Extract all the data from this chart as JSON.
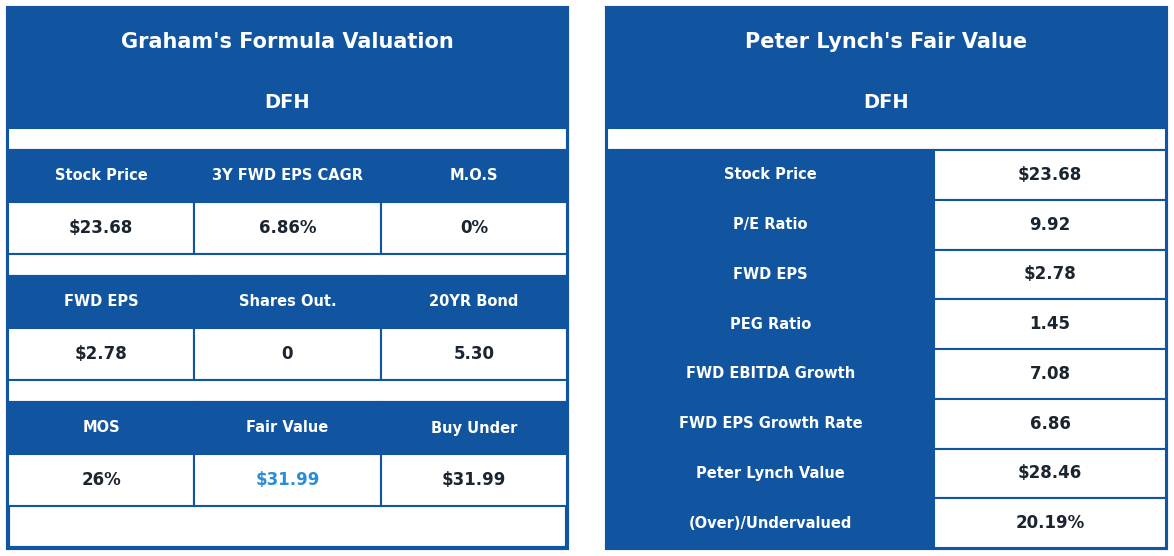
{
  "graham_title": "Graham's Formula Valuation",
  "graham_ticker": "DFH",
  "graham_headers1": [
    "Stock Price",
    "3Y FWD EPS CAGR",
    "M.O.S"
  ],
  "graham_values1": [
    "$23.68",
    "6.86%",
    "0%"
  ],
  "graham_headers2": [
    "FWD EPS",
    "Shares Out.",
    "20YR Bond"
  ],
  "graham_values2": [
    "$2.78",
    "0",
    "5.30"
  ],
  "graham_headers3": [
    "MOS",
    "Fair Value",
    "Buy Under"
  ],
  "graham_values3": [
    "26%",
    "$31.99",
    "$31.99"
  ],
  "lynch_title": "Peter Lynch's Fair Value",
  "lynch_ticker": "DFH",
  "lynch_rows": [
    [
      "Stock Price",
      "$23.68"
    ],
    [
      "P/E Ratio",
      "9.92"
    ],
    [
      "FWD EPS",
      "$2.78"
    ],
    [
      "PEG Ratio",
      "1.45"
    ],
    [
      "FWD EBITDA Growth",
      "7.08"
    ],
    [
      "FWD EPS Growth Rate",
      "6.86"
    ],
    [
      "Peter Lynch Value",
      "$28.46"
    ],
    [
      "(Over)/Undervalued",
      "20.19%"
    ]
  ],
  "dark_blue": "#1155a0",
  "white": "#ffffff",
  "light_blue_val": "#2b8dd6",
  "bg_color": "#ffffff",
  "border_color": "#1155a0",
  "text_dark": "#1a2530",
  "gap_white": "#ffffff"
}
